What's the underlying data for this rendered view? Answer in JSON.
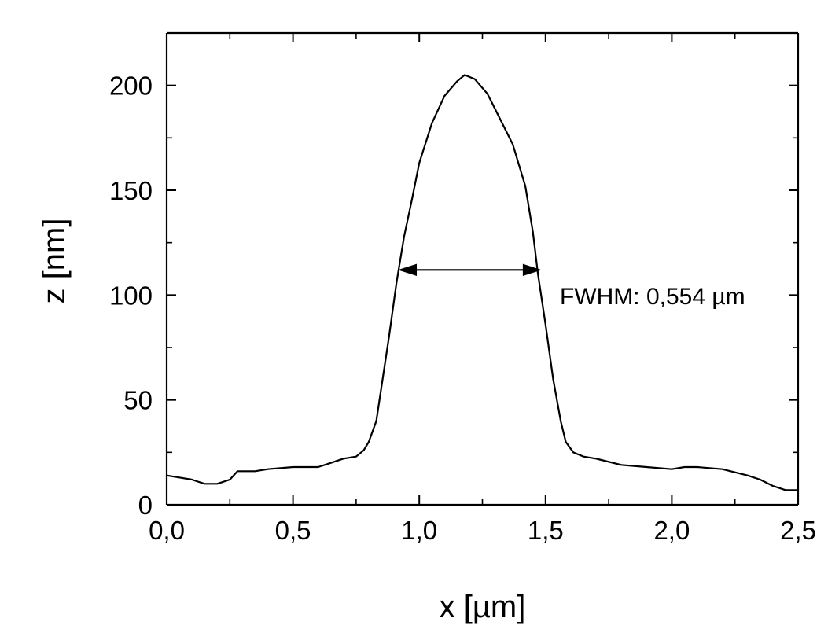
{
  "chart_data": {
    "type": "line",
    "title": "",
    "xlabel": "x [µm]",
    "ylabel": "z [nm]",
    "xlim": [
      0.0,
      2.5
    ],
    "ylim": [
      0,
      225
    ],
    "x_ticks": [
      {
        "value": 0.0,
        "label": "0,0"
      },
      {
        "value": 0.5,
        "label": "0,5"
      },
      {
        "value": 1.0,
        "label": "1,0"
      },
      {
        "value": 1.5,
        "label": "1,5"
      },
      {
        "value": 2.0,
        "label": "2,0"
      },
      {
        "value": 2.5,
        "label": "2,5"
      }
    ],
    "y_ticks": [
      {
        "value": 0,
        "label": "0"
      },
      {
        "value": 50,
        "label": "50"
      },
      {
        "value": 100,
        "label": "100"
      },
      {
        "value": 150,
        "label": "150"
      },
      {
        "value": 200,
        "label": "200"
      }
    ],
    "grid": false,
    "legend": "none",
    "series": [
      {
        "color": "#000000",
        "points": [
          [
            0.0,
            14
          ],
          [
            0.05,
            13
          ],
          [
            0.1,
            12
          ],
          [
            0.15,
            10
          ],
          [
            0.2,
            10
          ],
          [
            0.25,
            12
          ],
          [
            0.28,
            16
          ],
          [
            0.35,
            16
          ],
          [
            0.4,
            17
          ],
          [
            0.5,
            18
          ],
          [
            0.6,
            18
          ],
          [
            0.65,
            20
          ],
          [
            0.7,
            22
          ],
          [
            0.75,
            23
          ],
          [
            0.78,
            26
          ],
          [
            0.8,
            30
          ],
          [
            0.83,
            40
          ],
          [
            0.85,
            56
          ],
          [
            0.88,
            80
          ],
          [
            0.91,
            106
          ],
          [
            0.94,
            128
          ],
          [
            0.97,
            145
          ],
          [
            1.0,
            163
          ],
          [
            1.05,
            182
          ],
          [
            1.1,
            195
          ],
          [
            1.15,
            202
          ],
          [
            1.18,
            205
          ],
          [
            1.22,
            203
          ],
          [
            1.27,
            196
          ],
          [
            1.32,
            184
          ],
          [
            1.37,
            172
          ],
          [
            1.42,
            152
          ],
          [
            1.45,
            130
          ],
          [
            1.47,
            110
          ],
          [
            1.5,
            86
          ],
          [
            1.53,
            60
          ],
          [
            1.56,
            40
          ],
          [
            1.58,
            30
          ],
          [
            1.61,
            25
          ],
          [
            1.65,
            23
          ],
          [
            1.7,
            22
          ],
          [
            1.8,
            19
          ],
          [
            1.9,
            18
          ],
          [
            2.0,
            17
          ],
          [
            2.05,
            18
          ],
          [
            2.1,
            18
          ],
          [
            2.2,
            17
          ],
          [
            2.3,
            14
          ],
          [
            2.35,
            12
          ],
          [
            2.4,
            9
          ],
          [
            2.45,
            7
          ],
          [
            2.5,
            7
          ]
        ]
      }
    ],
    "annotations": [
      {
        "type": "double-arrow",
        "x_start": 0.92,
        "x_end": 1.48,
        "y": 112,
        "text": "FWHM: 0,554 µm"
      }
    ]
  }
}
